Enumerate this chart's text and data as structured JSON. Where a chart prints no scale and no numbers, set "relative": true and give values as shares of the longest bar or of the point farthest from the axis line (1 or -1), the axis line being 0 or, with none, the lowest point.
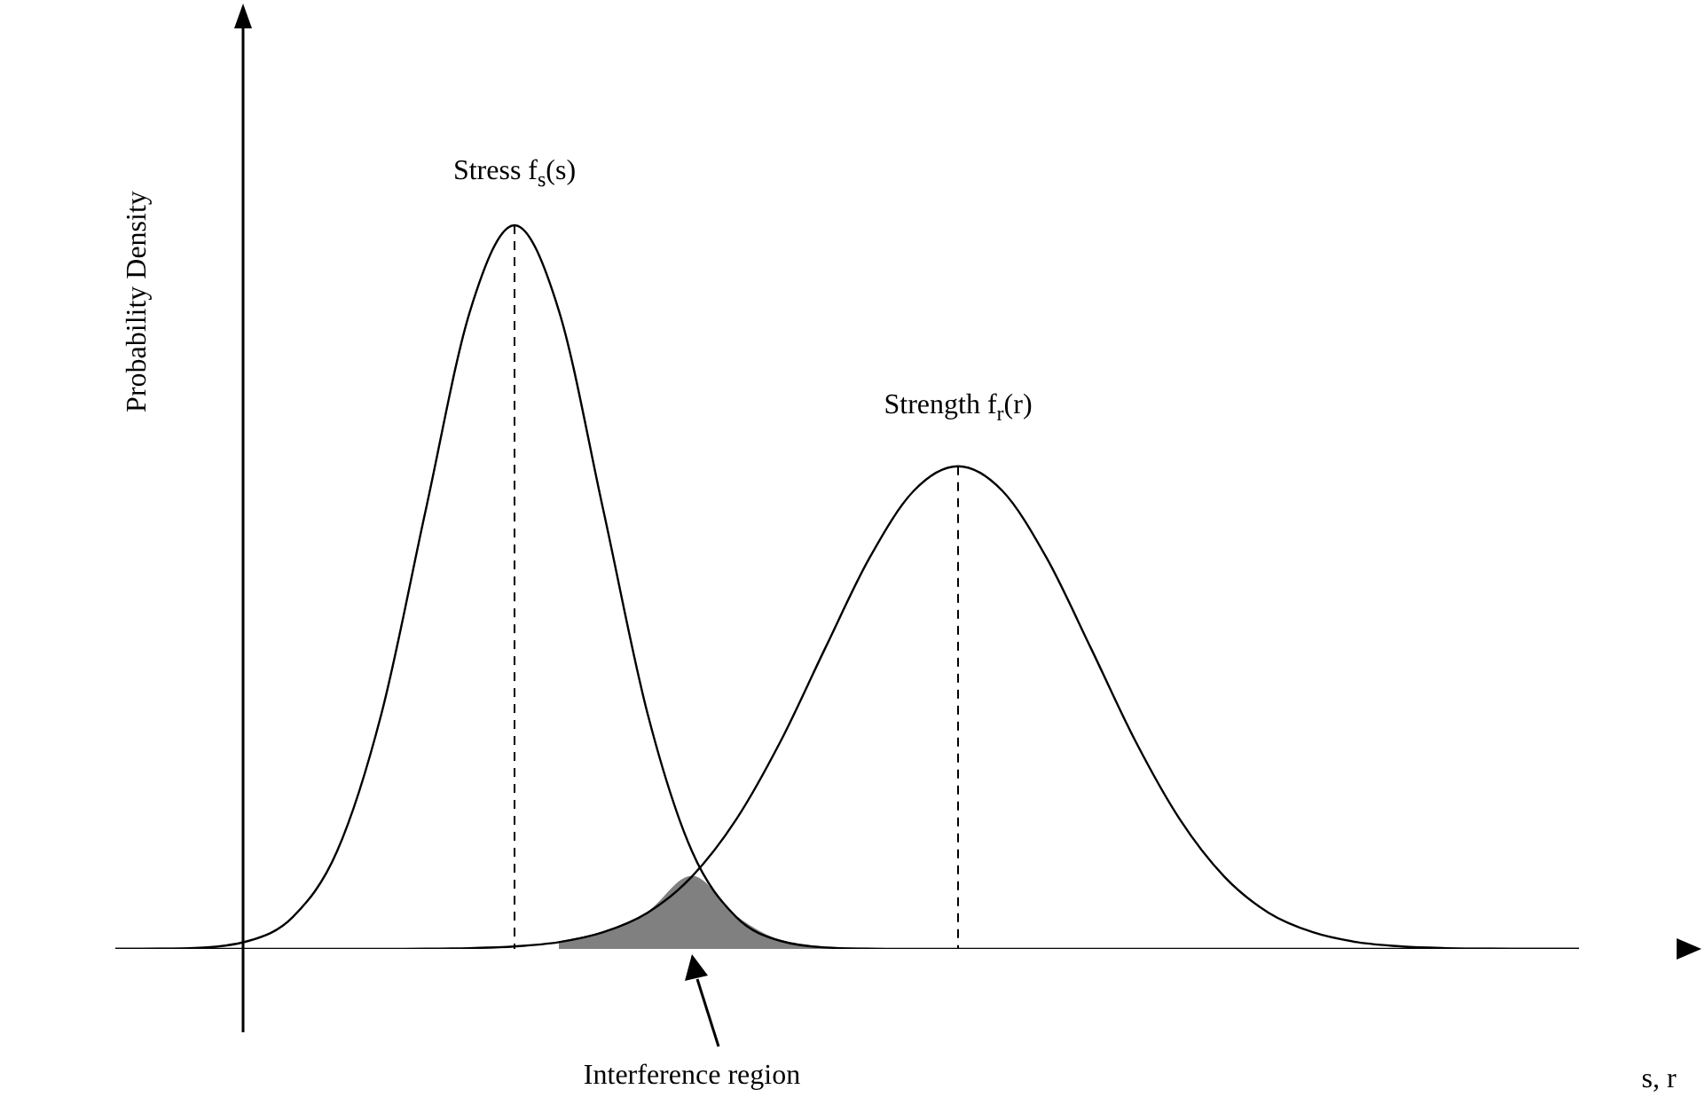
{
  "chart_data": {
    "type": "line",
    "relative": true,
    "xlabel": "s, r",
    "ylabel": "Probability Density",
    "categories": [
      null,
      null,
      null,
      null,
      null,
      null,
      null,
      null,
      null,
      null,
      null,
      null,
      null,
      null,
      null,
      null,
      null,
      null,
      null,
      null,
      null,
      null,
      null,
      null,
      null,
      null,
      null,
      null,
      null,
      null,
      null,
      null,
      null,
      null
    ],
    "series": [
      {
        "name": "Stress f$_{s}$(s)",
        "color": "#000000",
        "values": [
          0,
          0.0003,
          0.002,
          0.011,
          0.044,
          0.135,
          0.325,
          0.607,
          0.882,
          1,
          0.882,
          0.607,
          0.325,
          0.135,
          0.044,
          0.011,
          0.002,
          0.0003,
          0,
          0,
          0,
          0,
          0,
          0,
          0,
          0,
          0,
          0,
          0,
          0,
          0,
          0,
          0,
          0
        ]
      },
      {
        "name": "Strength f$_{r}$(r)",
        "color": "#000000",
        "values": [
          0,
          0,
          0,
          0,
          0,
          0,
          0.0001,
          0.0003,
          0.0011,
          0.0034,
          0.0093,
          0.023,
          0.05,
          0.1,
          0.179,
          0.287,
          0.415,
          0.54,
          0.633,
          0.667,
          0.633,
          0.54,
          0.415,
          0.287,
          0.179,
          0.1,
          0.05,
          0.023,
          0.0093,
          0.0034,
          0.0011,
          0.0003,
          0.0001,
          0
        ]
      },
      {
        "type": "area",
        "color": "#808080",
        "values": [
          null,
          null,
          null,
          null,
          null,
          null,
          null,
          null,
          null,
          null,
          0.0093,
          0.023,
          0.05,
          0.1,
          0.044,
          0.011,
          0.002,
          0.0003,
          null,
          null,
          null,
          null,
          null,
          null,
          null,
          null,
          null,
          null,
          null,
          null,
          null,
          null,
          null,
          null
        ]
      }
    ],
    "annotations": [
      "Interference region"
    ],
    "grid": false,
    "marker": "none",
    "line_style": "solid"
  }
}
